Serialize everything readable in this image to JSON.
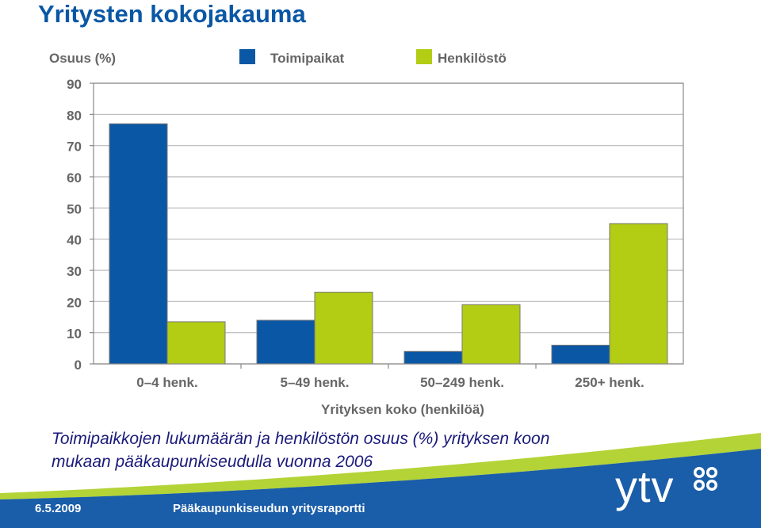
{
  "slide": {
    "title": "Yritysten kokojakauma",
    "caption_line1": "Toimipaikkojen lukumäärän ja henkilöstön osuus (%) yrityksen koon",
    "caption_line2": "mukaan pääkaupunkiseudulla vuonna 2006"
  },
  "footer": {
    "date": "6.5.2009",
    "report": "Pääkaupunkiseudun yritysraportti",
    "logo_text": "ytv",
    "colors": {
      "band": "#1a5da8",
      "stripe": "#b3d337",
      "emblem": "#1a5da8"
    }
  },
  "chart_data": {
    "type": "bar",
    "ylabel": "Osuus (%)",
    "xlabel": "Yrityksen koko (henkilöä)",
    "categories": [
      "0–4 henk.",
      "5–49 henk.",
      "50–249 henk.",
      "250+ henk."
    ],
    "yticks": [
      "0",
      "10",
      "20",
      "30",
      "40",
      "50",
      "60",
      "70",
      "80",
      "90"
    ],
    "ylim": [
      0,
      90
    ],
    "grid": true,
    "legend_position": "top",
    "series": [
      {
        "name": "Toimipaikat",
        "color": "#0a57a5",
        "values": [
          77,
          14,
          4,
          6
        ]
      },
      {
        "name": "Henkilöstö",
        "color": "#b3cc14",
        "values": [
          13.5,
          23,
          19,
          45
        ]
      }
    ]
  }
}
